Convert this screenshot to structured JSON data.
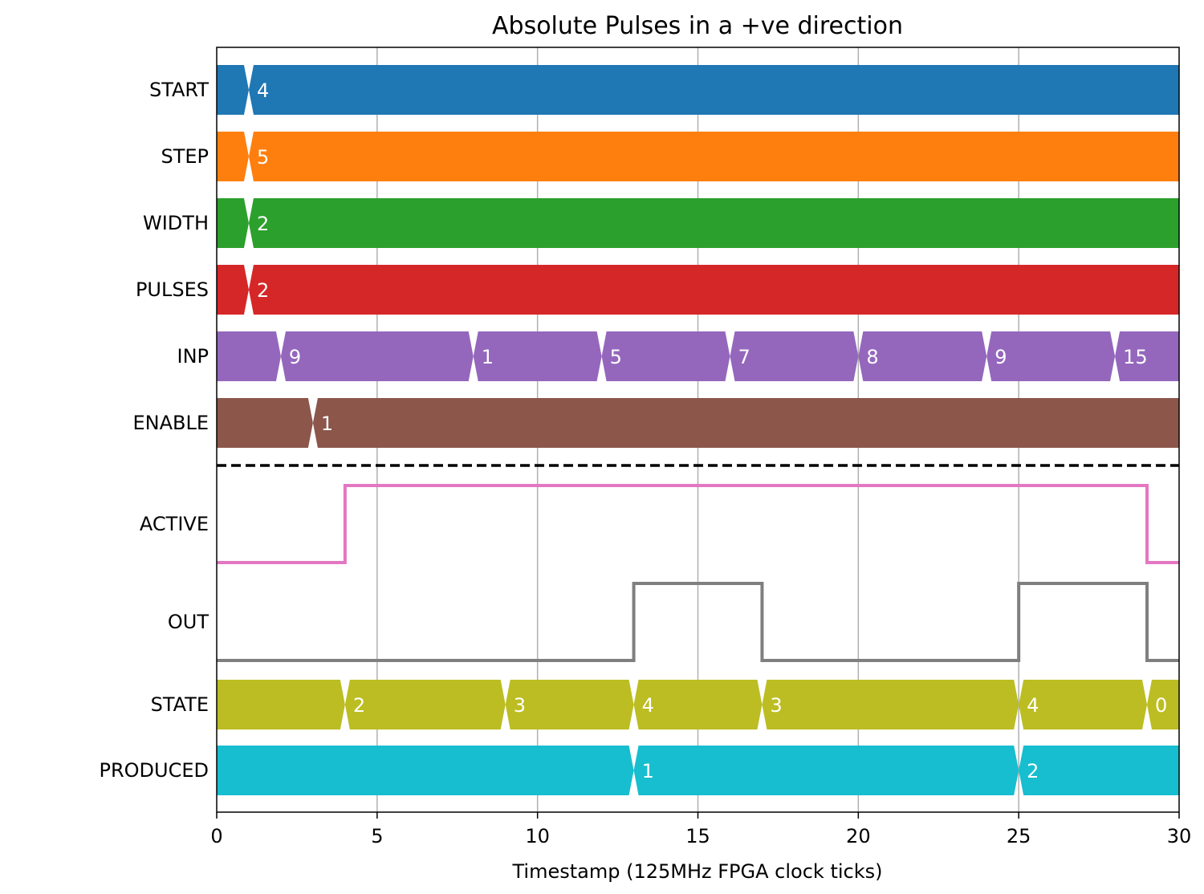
{
  "chart_data": {
    "type": "timing",
    "title": "Absolute Pulses in a +ve direction",
    "xlabel": "Timestamp (125MHz FPGA clock ticks)",
    "xlim": [
      0,
      30
    ],
    "xticks": [
      0,
      5,
      10,
      15,
      20,
      25,
      30
    ],
    "grid": true,
    "inputs": [
      {
        "name": "START",
        "color": "#1f77b4",
        "changes": [
          {
            "t": 1,
            "value": "4"
          }
        ]
      },
      {
        "name": "STEP",
        "color": "#ff7f0e",
        "changes": [
          {
            "t": 1,
            "value": "5"
          }
        ]
      },
      {
        "name": "WIDTH",
        "color": "#2ca02c",
        "changes": [
          {
            "t": 1,
            "value": "2"
          }
        ]
      },
      {
        "name": "PULSES",
        "color": "#d62728",
        "changes": [
          {
            "t": 1,
            "value": "2"
          }
        ]
      },
      {
        "name": "INP",
        "color": "#9467bd",
        "changes": [
          {
            "t": 2,
            "value": "9"
          },
          {
            "t": 8,
            "value": "1"
          },
          {
            "t": 12,
            "value": "5"
          },
          {
            "t": 16,
            "value": "7"
          },
          {
            "t": 20,
            "value": "8"
          },
          {
            "t": 24,
            "value": "9"
          },
          {
            "t": 28,
            "value": "15"
          }
        ]
      },
      {
        "name": "ENABLE",
        "color": "#8c564b",
        "changes": [
          {
            "t": 3,
            "value": "1"
          }
        ]
      }
    ],
    "bits": [
      {
        "name": "ACTIVE",
        "color": "#e377c2",
        "points": [
          [
            0,
            0
          ],
          [
            4,
            1
          ],
          [
            29,
            0
          ]
        ]
      },
      {
        "name": "OUT",
        "color": "#7f7f7f",
        "points": [
          [
            0,
            0
          ],
          [
            13,
            1
          ],
          [
            17,
            0
          ],
          [
            25,
            1
          ],
          [
            29,
            0
          ]
        ]
      }
    ],
    "outputs": [
      {
        "name": "STATE",
        "color": "#bcbd22",
        "changes": [
          {
            "t": 4,
            "value": "2"
          },
          {
            "t": 9,
            "value": "3"
          },
          {
            "t": 13,
            "value": "4"
          },
          {
            "t": 17,
            "value": "3"
          },
          {
            "t": 25,
            "value": "4"
          },
          {
            "t": 29,
            "value": "0"
          }
        ]
      },
      {
        "name": "PRODUCED",
        "color": "#17becf",
        "changes": [
          {
            "t": 13,
            "value": "1"
          },
          {
            "t": 25,
            "value": "2"
          }
        ]
      }
    ]
  }
}
